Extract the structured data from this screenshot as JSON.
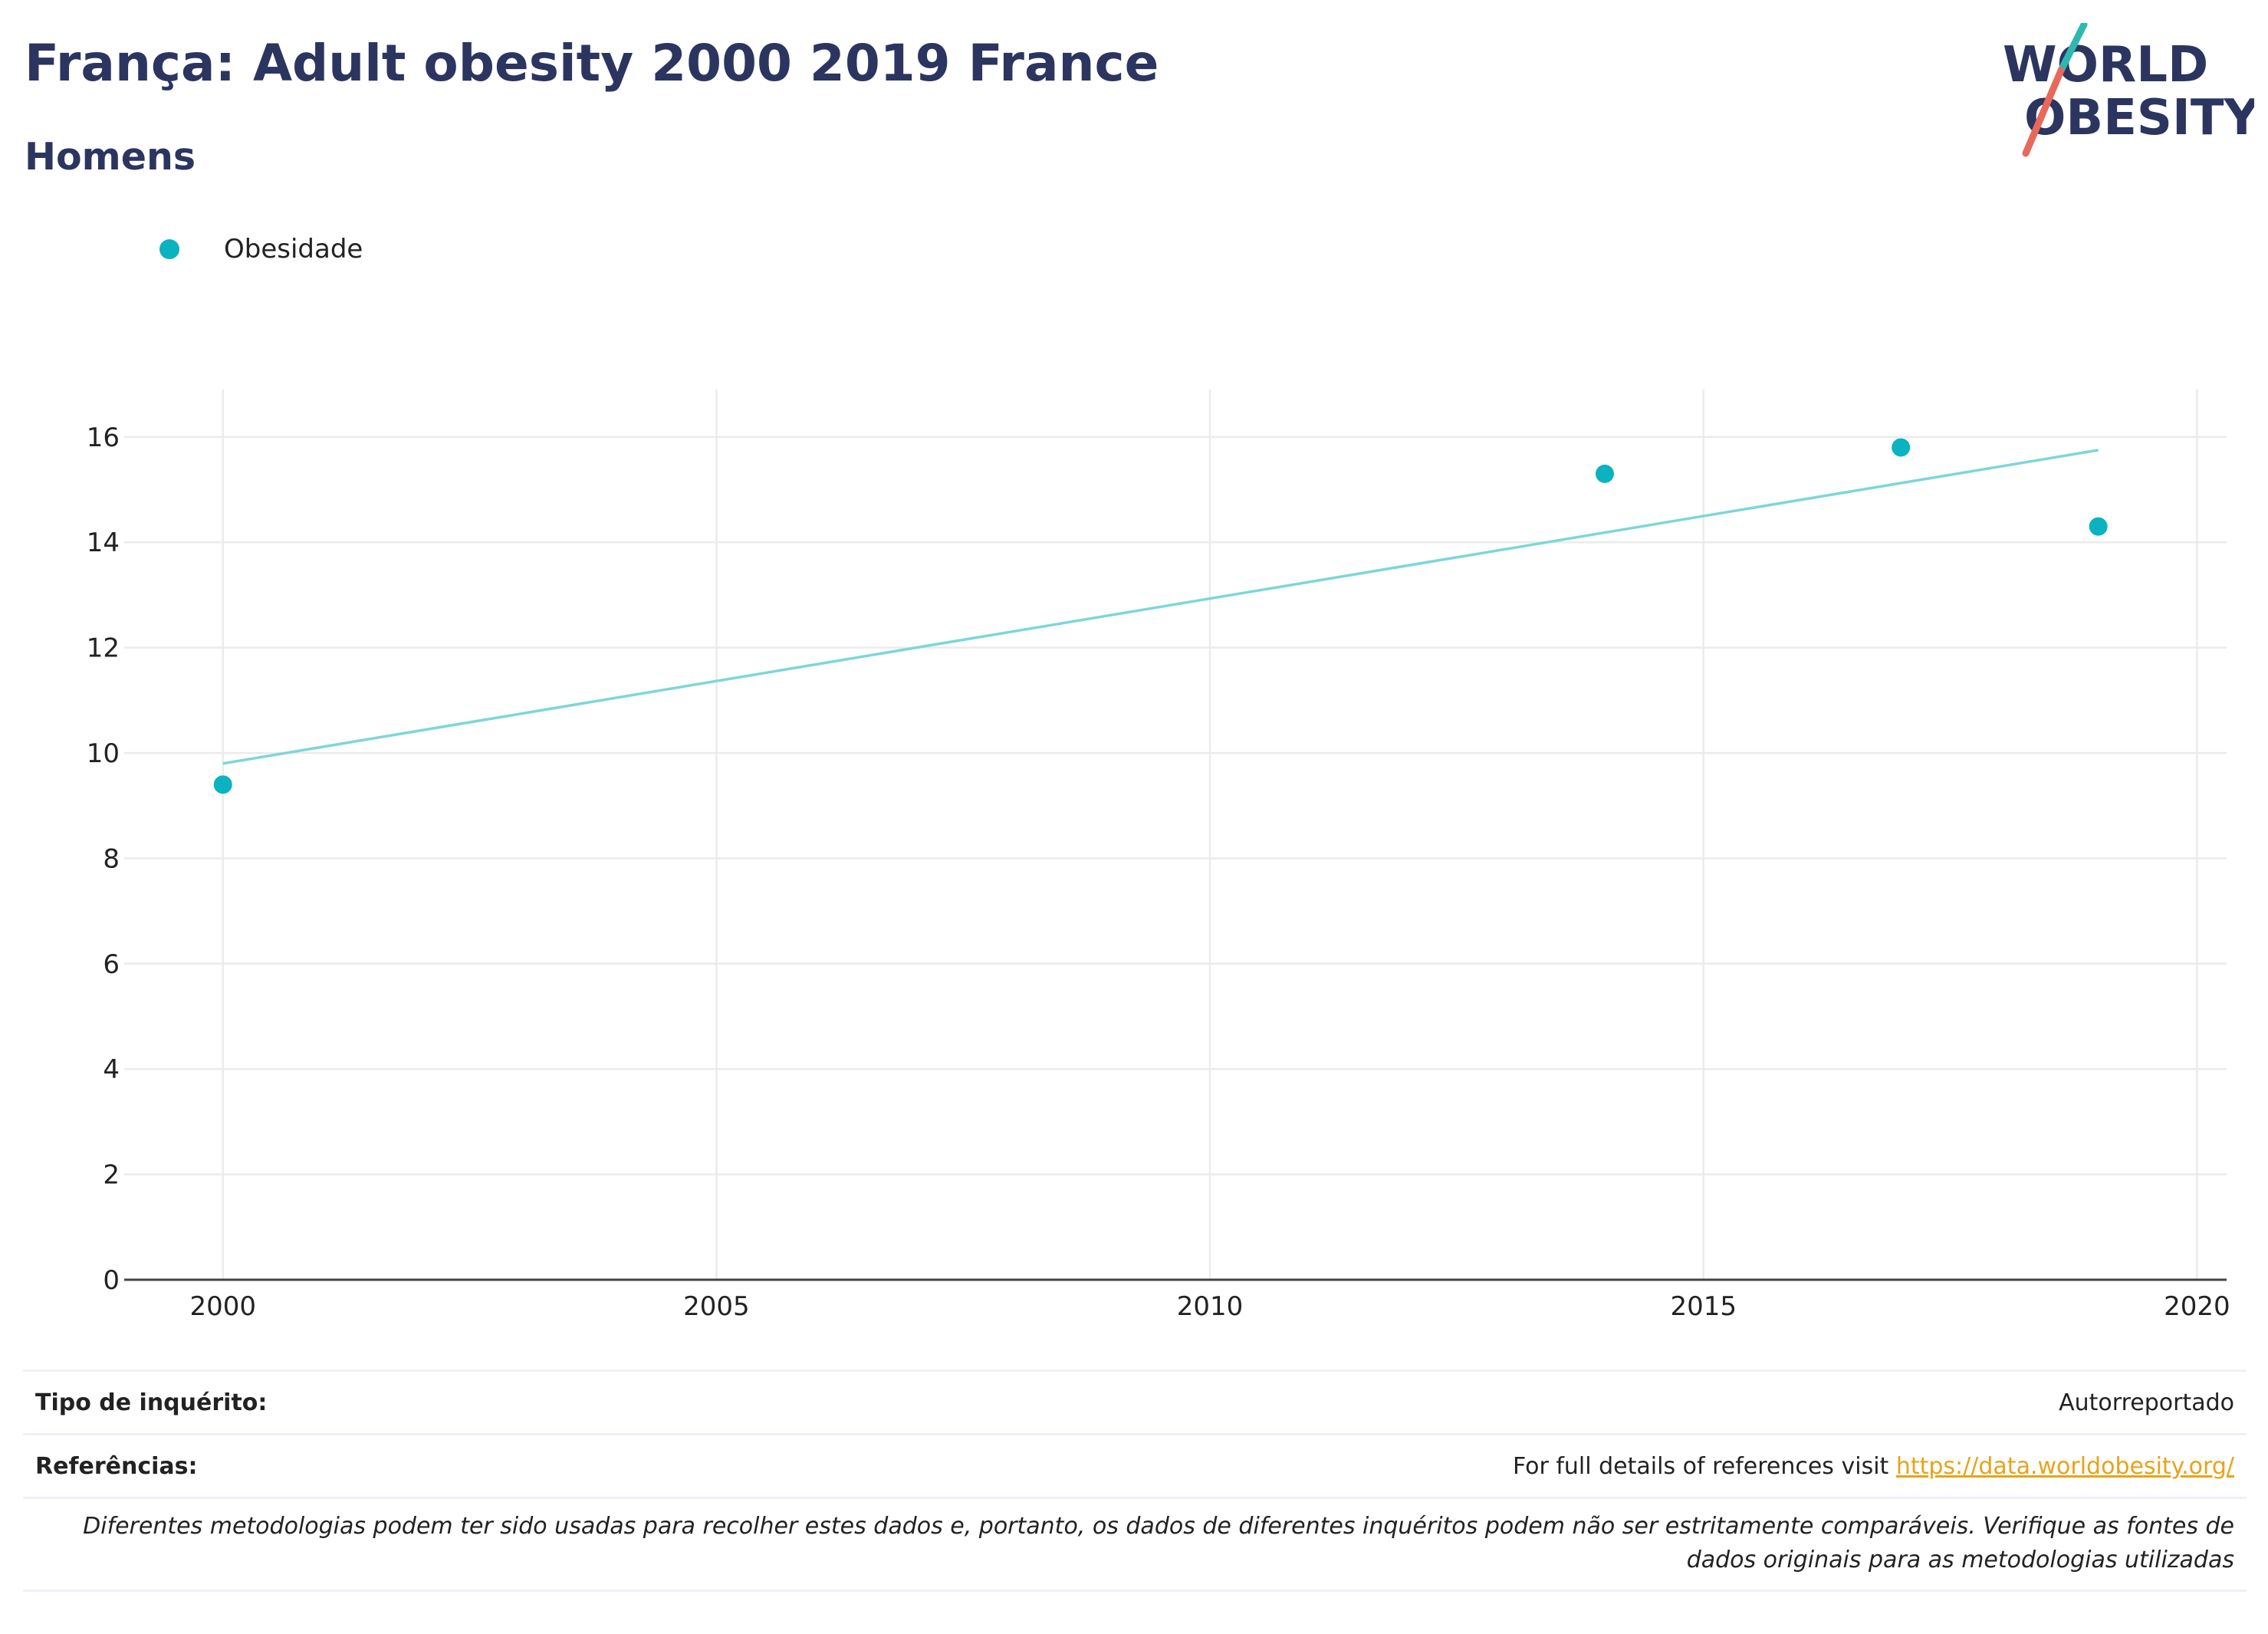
{
  "header": {
    "title": "França: Adult obesity 2000 2019 France",
    "subtitle": "Homens"
  },
  "logo": {
    "line1": "WORLD",
    "line2": "OBESITY",
    "colors": {
      "text": "#2b3560",
      "slash_top": "#2fb8b1",
      "slash_bottom": "#e8685a"
    }
  },
  "legend": {
    "items": [
      {
        "label": "Obesidade",
        "color": "#0ab3bf"
      }
    ]
  },
  "chart_data": {
    "type": "scatter",
    "title": "França: Adult obesity 2000 2019 France",
    "subtitle": "Homens",
    "xlabel": "",
    "ylabel": "",
    "xlim": [
      1999,
      2020.3
    ],
    "ylim": [
      0,
      16.9
    ],
    "x_ticks": [
      2000,
      2005,
      2010,
      2015,
      2020
    ],
    "y_ticks": [
      0,
      2,
      4,
      6,
      8,
      10,
      12,
      14,
      16
    ],
    "grid": true,
    "legend_position": "top-left",
    "series": [
      {
        "name": "Obesidade",
        "color": "#0ab3bf",
        "points": [
          {
            "x": 2000,
            "y": 9.4
          },
          {
            "x": 2014,
            "y": 15.3
          },
          {
            "x": 2017,
            "y": 15.8
          },
          {
            "x": 2019,
            "y": 14.3
          }
        ]
      }
    ],
    "trendline": {
      "color": "#7dd6da",
      "points": [
        {
          "x": 2000,
          "y": 9.8
        },
        {
          "x": 2019,
          "y": 15.75
        }
      ]
    }
  },
  "footer": {
    "survey_type_label": "Tipo de inquérito:",
    "survey_type_value": "Autorreportado",
    "references_label": "Referências:",
    "references_text": "For full details of references visit ",
    "references_link": "https://data.worldobesity.org/",
    "note": "Diferentes metodologias podem ter sido usadas para recolher estes dados e, portanto, os dados de diferentes inquéritos podem não ser estritamente comparáveis. Verifique as fontes de dados originais para as metodologias utilizadas"
  }
}
